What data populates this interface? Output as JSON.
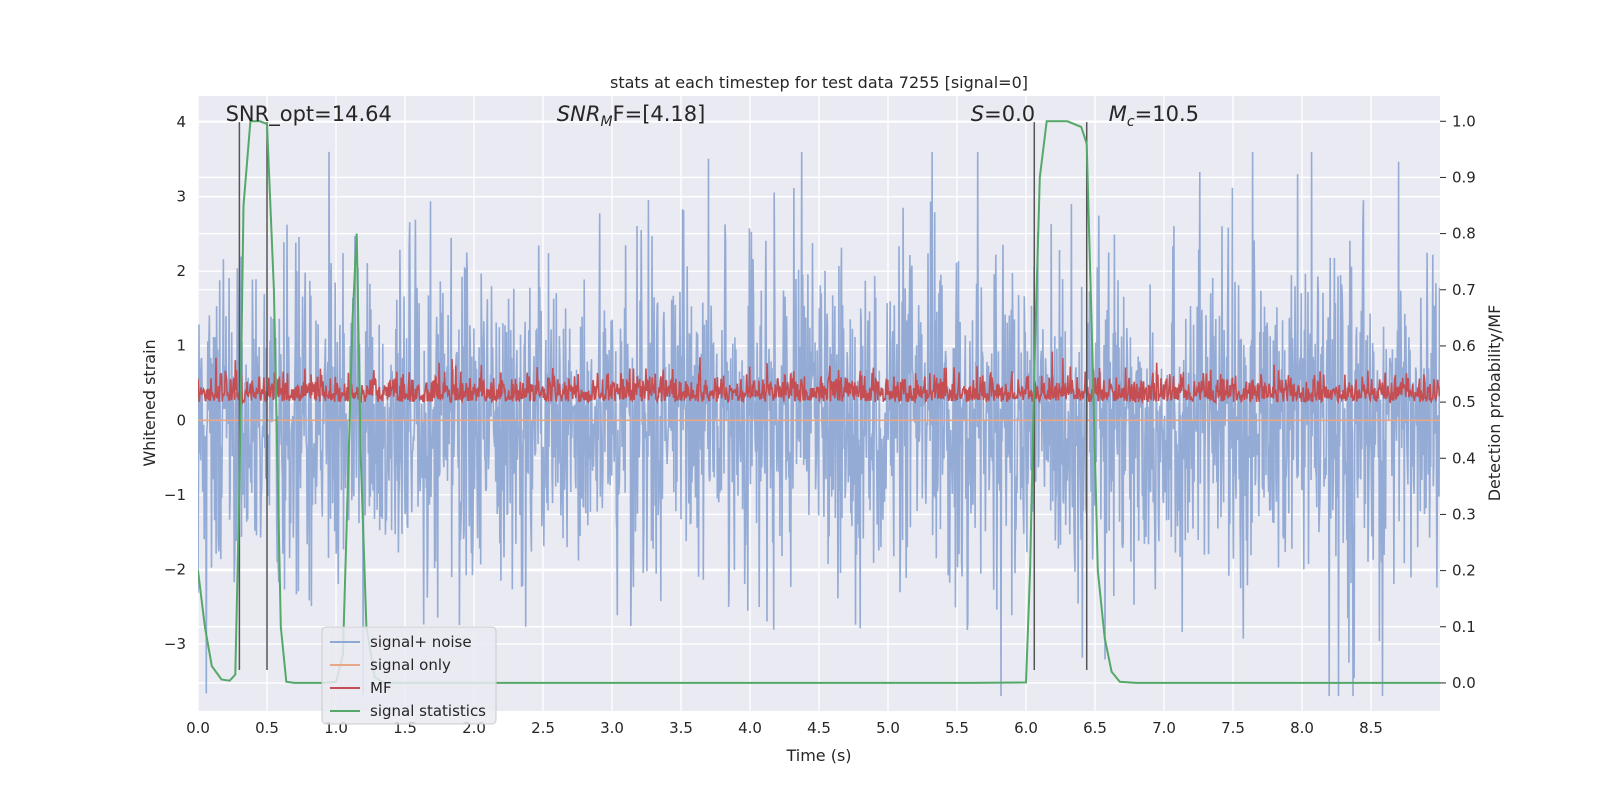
{
  "chart_data": {
    "type": "line",
    "title": "stats at each timestep for test data 7255 [signal=0]",
    "xlabel": "Time (s)",
    "ylabel": "Whitened strain",
    "ylabel_right": "Detection probability/MF",
    "xlim": [
      0.0,
      9.0
    ],
    "ylim": [
      -3.9,
      4.35
    ],
    "ylim_right": [
      -0.05,
      1.045
    ],
    "xticks": [
      "0.0",
      "0.5",
      "1.0",
      "1.5",
      "2.0",
      "2.5",
      "3.0",
      "3.5",
      "4.0",
      "4.5",
      "5.0",
      "5.5",
      "6.0",
      "6.5",
      "7.0",
      "7.5",
      "8.0",
      "8.5"
    ],
    "yticks_left": [
      "−3",
      "−2",
      "−1",
      "0",
      "1",
      "2",
      "3",
      "4"
    ],
    "yticks_right": [
      "0.0",
      "0.1",
      "0.2",
      "0.3",
      "0.4",
      "0.5",
      "0.6",
      "0.7",
      "0.8",
      "0.9",
      "1.0"
    ],
    "annotations": [
      {
        "prefix": "SNR_opt=14.64",
        "sub": "",
        "suffix": "",
        "x": 0.2
      },
      {
        "prefix": "SNR",
        "sub": "M",
        "suffix": "F=[4.18]",
        "x": 2.6
      },
      {
        "prefix": "S",
        "sub": "",
        "suffix": "=0.0",
        "x": 5.6
      },
      {
        "prefix": "M",
        "sub": "c",
        "suffix": "=10.5",
        "x": 6.6
      }
    ],
    "vlines": [
      0.3,
      0.5,
      6.06,
      6.44
    ],
    "series": [
      {
        "name": "signal+ noise",
        "color": "#8fa8d3",
        "axis": "left",
        "description": "whitened strain, amplitude mostly within ±2, peaks near ±3.5"
      },
      {
        "name": "signal only",
        "color": "#e8a888",
        "axis": "left",
        "y": 0.0
      },
      {
        "name": "MF",
        "color": "#c44e52",
        "axis": "right",
        "range": [
          0.5,
          0.58
        ]
      },
      {
        "name": "signal statistics",
        "color": "#55a868",
        "axis": "right",
        "x": [
          0.0,
          0.05,
          0.1,
          0.17,
          0.23,
          0.27,
          0.3,
          0.33,
          0.38,
          0.45,
          0.5,
          0.55,
          0.6,
          0.64,
          0.7,
          0.8,
          0.9,
          1.0,
          1.05,
          1.08,
          1.12,
          1.15,
          1.18,
          1.22,
          1.28,
          1.35,
          1.5,
          2.0,
          3.0,
          4.0,
          5.0,
          5.6,
          6.0,
          6.03,
          6.06,
          6.1,
          6.15,
          6.3,
          6.4,
          6.44,
          6.48,
          6.52,
          6.57,
          6.62,
          6.68,
          6.8,
          7.0,
          8.0,
          9.0
        ],
        "y": [
          0.2,
          0.1,
          0.03,
          0.006,
          0.004,
          0.015,
          0.35,
          0.85,
          1.0,
          1.0,
          0.995,
          0.7,
          0.1,
          0.002,
          0.0,
          0.0,
          0.0,
          0.002,
          0.05,
          0.3,
          0.65,
          0.8,
          0.4,
          0.1,
          0.01,
          0.0,
          0.0,
          0.0,
          0.0,
          0.0,
          0.0,
          0.0,
          0.001,
          0.2,
          0.55,
          0.9,
          1.0,
          1.0,
          0.99,
          0.96,
          0.6,
          0.2,
          0.08,
          0.02,
          0.002,
          0.0,
          0.0,
          0.0,
          0.0
        ]
      }
    ],
    "legend_location": "lower-left"
  }
}
